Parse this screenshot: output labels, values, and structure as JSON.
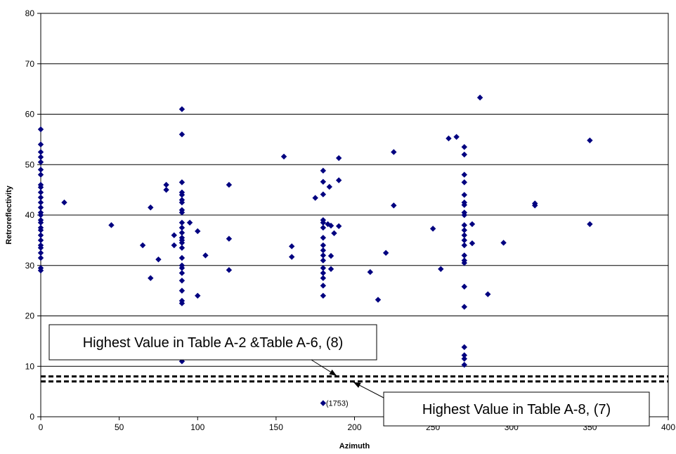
{
  "chart_data": {
    "type": "scatter",
    "title": "",
    "xlabel": "Azimuth",
    "ylabel": "Retroreflectivity",
    "xlim": [
      0,
      400
    ],
    "ylim": [
      0,
      80
    ],
    "x_ticks": [
      0,
      50,
      100,
      150,
      200,
      250,
      300,
      350,
      400
    ],
    "y_ticks": [
      0,
      10,
      20,
      30,
      40,
      50,
      60,
      70,
      80
    ],
    "grid": "horizontal",
    "marker_color": "#000080",
    "series": [
      {
        "marker": "diamond",
        "points": [
          [
            0,
            57
          ],
          [
            0,
            54
          ],
          [
            0,
            52.5
          ],
          [
            0,
            51.5
          ],
          [
            0,
            50.5
          ],
          [
            0,
            49
          ],
          [
            0,
            48
          ],
          [
            0,
            46
          ],
          [
            0,
            45.5
          ],
          [
            0,
            44.5
          ],
          [
            0,
            43.5
          ],
          [
            0,
            42.5
          ],
          [
            0,
            41.5
          ],
          [
            0,
            40.5
          ],
          [
            0,
            40
          ],
          [
            0,
            39
          ],
          [
            0,
            38.5
          ],
          [
            0,
            37.5
          ],
          [
            0,
            37
          ],
          [
            0,
            36
          ],
          [
            0,
            35
          ],
          [
            0,
            34
          ],
          [
            0,
            33.5
          ],
          [
            0,
            32.5
          ],
          [
            0,
            31.5
          ],
          [
            0,
            29.5
          ],
          [
            0,
            29
          ],
          [
            15,
            42.5
          ],
          [
            45,
            38
          ],
          [
            65,
            34
          ],
          [
            70,
            41.5
          ],
          [
            70,
            27.5
          ],
          [
            75,
            31.2
          ],
          [
            80,
            46
          ],
          [
            80,
            45
          ],
          [
            85,
            36
          ],
          [
            85,
            34
          ],
          [
            90,
            61
          ],
          [
            90,
            56
          ],
          [
            90,
            46.5
          ],
          [
            90,
            44.5
          ],
          [
            90,
            44
          ],
          [
            90,
            43
          ],
          [
            90,
            42.5
          ],
          [
            90,
            41
          ],
          [
            90,
            40.5
          ],
          [
            90,
            38.5
          ],
          [
            90,
            37.5
          ],
          [
            90,
            36.5
          ],
          [
            90,
            35.5
          ],
          [
            90,
            35
          ],
          [
            90,
            34.5
          ],
          [
            90,
            33.5
          ],
          [
            90,
            31.5
          ],
          [
            90,
            30
          ],
          [
            90,
            29.5
          ],
          [
            90,
            28.5
          ],
          [
            90,
            27
          ],
          [
            90,
            25
          ],
          [
            90,
            23
          ],
          [
            90,
            22.5
          ],
          [
            90,
            12
          ],
          [
            90,
            11
          ],
          [
            95,
            38.5
          ],
          [
            100,
            36.8
          ],
          [
            100,
            24
          ],
          [
            105,
            32
          ],
          [
            120,
            46
          ],
          [
            120,
            35.3
          ],
          [
            120,
            29.1
          ],
          [
            155,
            51.6
          ],
          [
            160,
            33.8
          ],
          [
            160,
            31.7
          ],
          [
            175,
            43.4
          ],
          [
            180,
            48.8
          ],
          [
            180,
            46.6
          ],
          [
            180,
            44.1
          ],
          [
            180,
            39
          ],
          [
            180,
            38.5
          ],
          [
            180,
            37.5
          ],
          [
            180,
            35.5
          ],
          [
            180,
            34
          ],
          [
            180,
            33
          ],
          [
            180,
            32
          ],
          [
            180,
            31
          ],
          [
            180,
            29.5
          ],
          [
            180,
            28.5
          ],
          [
            180,
            27.5
          ],
          [
            180,
            26
          ],
          [
            180,
            24
          ],
          [
            183,
            38.2
          ],
          [
            184,
            45.6
          ],
          [
            185,
            37.9
          ],
          [
            185,
            31.9
          ],
          [
            185,
            29.3
          ],
          [
            187,
            36.4
          ],
          [
            190,
            51.3
          ],
          [
            190,
            46.9
          ],
          [
            190,
            37.8
          ],
          [
            180,
            2.7
          ],
          [
            210,
            28.7
          ],
          [
            215,
            23.2
          ],
          [
            220,
            32.5
          ],
          [
            225,
            52.5
          ],
          [
            225,
            41.9
          ],
          [
            250,
            37.3
          ],
          [
            255,
            29.3
          ],
          [
            260,
            55.2
          ],
          [
            265,
            55.5
          ],
          [
            270,
            53.5
          ],
          [
            270,
            52
          ],
          [
            270,
            48
          ],
          [
            270,
            46.5
          ],
          [
            270,
            44
          ],
          [
            270,
            42.5
          ],
          [
            270,
            42
          ],
          [
            270,
            40.5
          ],
          [
            270,
            40
          ],
          [
            270,
            38
          ],
          [
            270,
            37
          ],
          [
            270,
            36
          ],
          [
            270,
            35
          ],
          [
            270,
            34
          ],
          [
            270,
            32
          ],
          [
            270,
            31
          ],
          [
            270,
            30.5
          ],
          [
            270,
            25.8
          ],
          [
            270,
            21.8
          ],
          [
            270,
            13.8
          ],
          [
            270,
            12.2
          ],
          [
            270,
            11.5
          ],
          [
            270,
            10.3
          ],
          [
            275,
            38.2
          ],
          [
            275,
            34.4
          ],
          [
            280,
            63.3
          ],
          [
            285,
            24.3
          ],
          [
            295,
            34.5
          ],
          [
            315,
            42.3
          ],
          [
            315,
            41.9
          ],
          [
            350,
            54.8
          ],
          [
            350,
            38.2
          ]
        ]
      }
    ],
    "reference_lines": [
      {
        "y": 8,
        "style": "dashed",
        "label": "Highest Value in Table A-2 &Table A-6, (8)"
      },
      {
        "y": 7,
        "style": "dashed",
        "label": "Highest Value in Table A-8, (7)"
      }
    ],
    "point_annotations": [
      {
        "x": 180,
        "y": 2.7,
        "text": "(1753)"
      }
    ]
  }
}
